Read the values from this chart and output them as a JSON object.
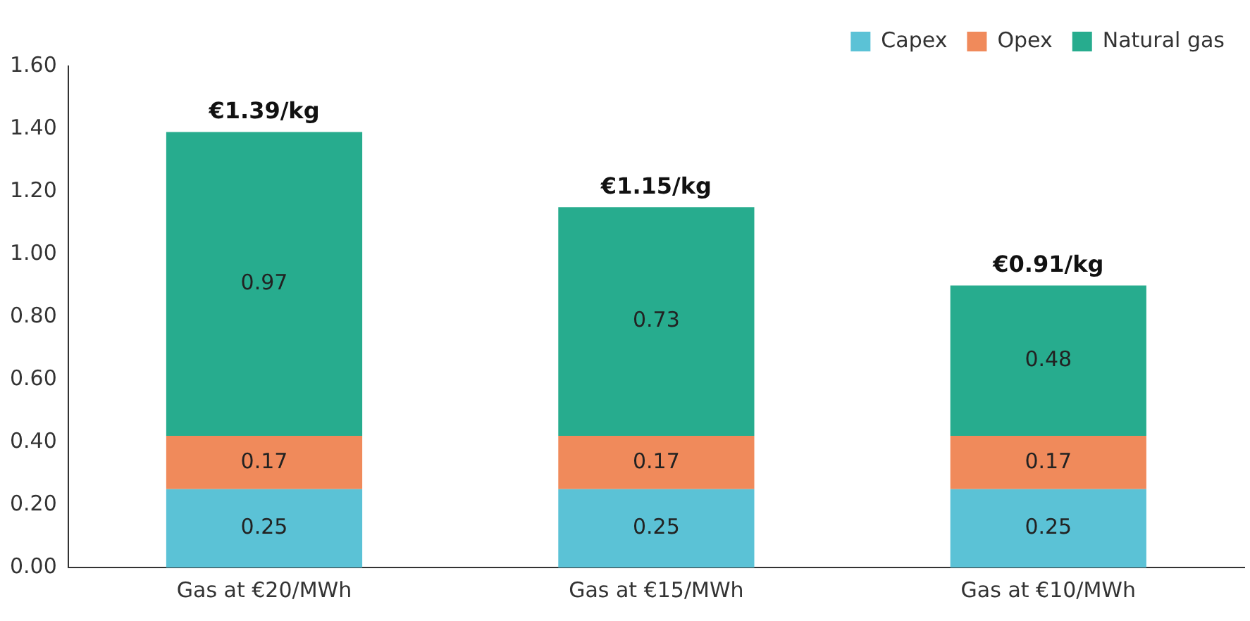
{
  "chart_data": {
    "type": "bar",
    "stacked": true,
    "categories": [
      "Gas at €20/MWh",
      "Gas at €15/MWh",
      "Gas at €10/MWh"
    ],
    "series": [
      {
        "name": "Capex",
        "color": "#5bc2d6",
        "values": [
          0.25,
          0.25,
          0.25
        ]
      },
      {
        "name": "Opex",
        "color": "#f08a5b",
        "values": [
          0.17,
          0.17,
          0.17
        ]
      },
      {
        "name": "Natural gas",
        "color": "#27ac8e",
        "values": [
          0.97,
          0.73,
          0.48
        ]
      }
    ],
    "totals": [
      "€1.39/kg",
      "€1.15/kg",
      "€0.91/kg"
    ],
    "data_labels": true,
    "ylim": [
      0,
      1.6
    ],
    "yticks": [
      {
        "value": 0,
        "label": "0.00"
      },
      {
        "value": 0.2,
        "label": "0.20"
      },
      {
        "value": 0.4,
        "label": "0.40"
      },
      {
        "value": 0.6,
        "label": "0.60"
      },
      {
        "value": 0.8,
        "label": "0.80"
      },
      {
        "value": 1,
        "label": "1.00"
      },
      {
        "value": 1.2,
        "label": "1.20"
      },
      {
        "value": 1.4,
        "label": "1.40"
      },
      {
        "value": 1.6,
        "label": "1.60"
      }
    ],
    "grid": false,
    "legend": "top right"
  }
}
